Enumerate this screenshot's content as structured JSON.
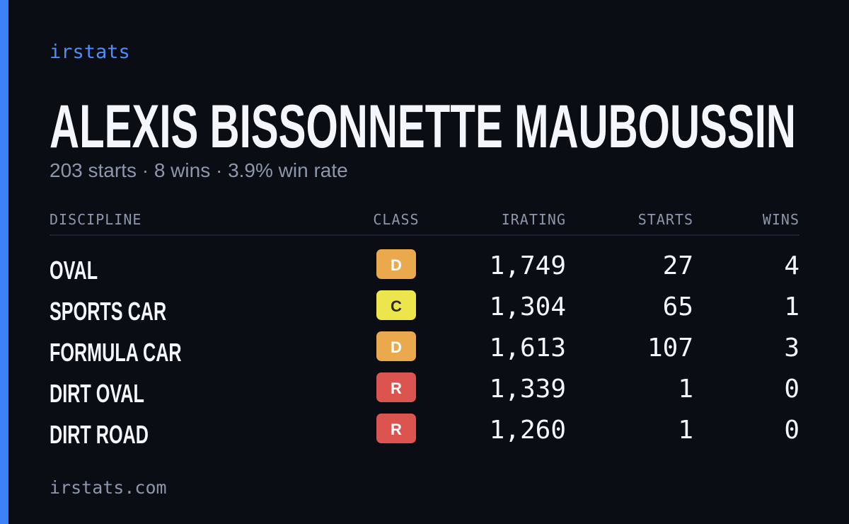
{
  "brand": "irstats",
  "driver": {
    "name": "ALEXIS BISSONNETTE MAUBOUSSIN",
    "summary": "203 starts · 8 wins · 3.9% win rate"
  },
  "table": {
    "columns": [
      "DISCIPLINE",
      "CLASS",
      "IRATING",
      "STARTS",
      "WINS"
    ],
    "rows": [
      {
        "discipline": "OVAL",
        "class": "D",
        "class_color": "#eaa94c",
        "class_text_color": "#ffffff",
        "irating": "1,749",
        "starts": "27",
        "wins": "4"
      },
      {
        "discipline": "SPORTS CAR",
        "class": "C",
        "class_color": "#ece54b",
        "class_text_color": "#2a2a2a",
        "irating": "1,304",
        "starts": "65",
        "wins": "1"
      },
      {
        "discipline": "FORMULA CAR",
        "class": "D",
        "class_color": "#eaa94c",
        "class_text_color": "#ffffff",
        "irating": "1,613",
        "starts": "107",
        "wins": "3"
      },
      {
        "discipline": "DIRT OVAL",
        "class": "R",
        "class_color": "#db5450",
        "class_text_color": "#ffffff",
        "irating": "1,339",
        "starts": "1",
        "wins": "0"
      },
      {
        "discipline": "DIRT ROAD",
        "class": "R",
        "class_color": "#db5450",
        "class_text_color": "#ffffff",
        "irating": "1,260",
        "starts": "1",
        "wins": "0"
      }
    ]
  },
  "footer": "irstats.com"
}
